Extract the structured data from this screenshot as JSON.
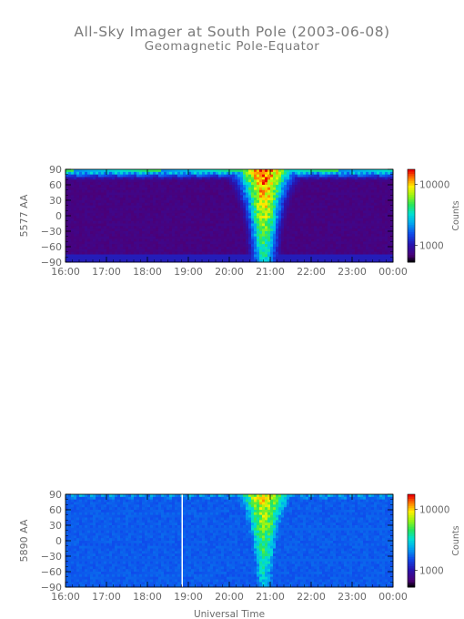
{
  "title": "All-Sky Imager at South Pole (2003-06-08)",
  "subtitle": "Geomagnetic Pole-Equator",
  "chart_data": [
    {
      "type": "heatmap",
      "ylabel": "5577 AA",
      "xlabel": "",
      "x_ticks": [
        "16:00",
        "17:00",
        "18:00",
        "19:00",
        "20:00",
        "21:00",
        "22:00",
        "23:00",
        "00:00"
      ],
      "y_ticks": [
        90,
        60,
        30,
        0,
        -30,
        -60,
        -90
      ],
      "ylim": [
        -90,
        90
      ],
      "colorbar": {
        "label": "Counts",
        "ticks": [
          "10000",
          "1000"
        ],
        "scale": "log"
      },
      "features": {
        "background_level": 0.06,
        "poleward_band_level": 0.55,
        "event_center_hour": 20.85,
        "event_peak_level": 1.0
      }
    },
    {
      "type": "heatmap",
      "ylabel": "5890 AA",
      "xlabel": "Universal Time",
      "x_ticks": [
        "16:00",
        "17:00",
        "18:00",
        "19:00",
        "20:00",
        "21:00",
        "22:00",
        "23:00",
        "00:00"
      ],
      "y_ticks": [
        90,
        60,
        30,
        0,
        -30,
        -60,
        -90
      ],
      "ylim": [
        -90,
        90
      ],
      "colorbar": {
        "label": "Counts",
        "ticks": [
          "10000",
          "1000"
        ],
        "scale": "log"
      },
      "features": {
        "background_level": 0.3,
        "poleward_band_level": 0.42,
        "event_center_hour": 20.85,
        "event_peak_level": 0.85
      }
    }
  ],
  "colors": {
    "text": "#6a6a6a",
    "title": "#7a7a7a",
    "axis": "#000000"
  }
}
